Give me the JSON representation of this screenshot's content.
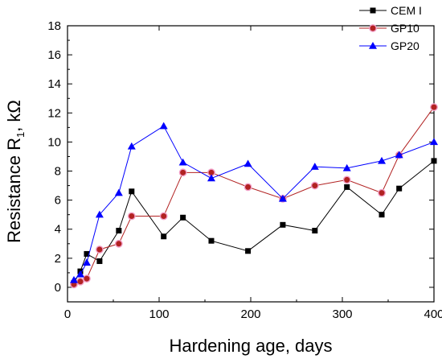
{
  "chart_data": {
    "type": "line",
    "xlabel": "Hardening age, days",
    "ylabel_parts": {
      "main": "Resistance R",
      "sub": "1",
      "unit": ",  kΩ"
    },
    "xlim": [
      0,
      400
    ],
    "ylim": [
      -1,
      18
    ],
    "xticks": [
      0,
      100,
      200,
      300,
      400
    ],
    "yticks": [
      0,
      2,
      4,
      6,
      8,
      10,
      12,
      14,
      16,
      18
    ],
    "grid": false,
    "legend_position": "top-right",
    "series": [
      {
        "name": "CEM I",
        "color": "#000000",
        "marker": "square",
        "x": [
          7,
          14,
          21,
          35,
          56,
          70,
          105,
          126,
          157,
          197,
          235,
          270,
          305,
          343,
          362,
          400
        ],
        "y": [
          0.3,
          1.1,
          2.3,
          1.8,
          3.9,
          6.6,
          3.5,
          4.8,
          3.2,
          2.5,
          4.3,
          3.9,
          6.9,
          5.0,
          6.8,
          8.7
        ]
      },
      {
        "name": "GP10",
        "color": "#b22222",
        "marker": "circle",
        "x": [
          7,
          14,
          21,
          35,
          56,
          70,
          105,
          126,
          157,
          197,
          235,
          270,
          305,
          343,
          362,
          400
        ],
        "y": [
          0.2,
          0.4,
          0.6,
          2.6,
          3.0,
          4.9,
          4.9,
          7.9,
          7.9,
          6.9,
          6.1,
          7.0,
          7.4,
          6.5,
          9.1,
          12.4
        ]
      },
      {
        "name": "GP20",
        "color": "#0000ff",
        "marker": "triangle",
        "x": [
          7,
          14,
          21,
          35,
          56,
          70,
          105,
          126,
          157,
          197,
          235,
          270,
          305,
          343,
          362,
          400
        ],
        "y": [
          0.5,
          0.9,
          1.7,
          5.0,
          6.5,
          9.7,
          11.1,
          8.6,
          7.5,
          8.5,
          6.1,
          8.3,
          8.2,
          8.7,
          9.1,
          10.0
        ]
      }
    ]
  }
}
